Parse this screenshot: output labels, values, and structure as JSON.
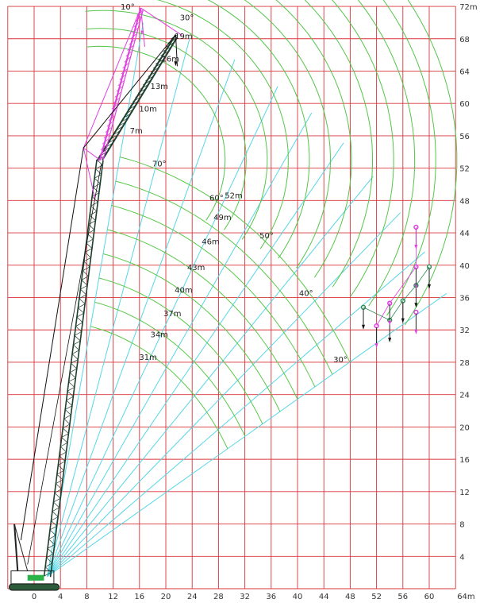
{
  "chart_data": {
    "type": "crane-working-range-diagram",
    "x_axis": {
      "unit_label": "64m",
      "ticks": [
        "0",
        "4",
        "8",
        "12",
        "16",
        "20",
        "24",
        "28",
        "32",
        "36",
        "40",
        "44",
        "48",
        "52",
        "56",
        "60"
      ],
      "range": [
        -4,
        64
      ]
    },
    "y_axis": {
      "unit_label": "72m",
      "ticks": [
        "4",
        "8",
        "12",
        "16",
        "20",
        "24",
        "28",
        "32",
        "36",
        "40",
        "44",
        "48",
        "52",
        "56",
        "60",
        "64",
        "68"
      ],
      "range": [
        0,
        72
      ]
    },
    "grid": true,
    "boom_length_labels": [
      {
        "text": "31m",
        "x": 17.3,
        "y": 28.3
      },
      {
        "text": "34m",
        "x": 19.0,
        "y": 31.1
      },
      {
        "text": "37m",
        "x": 21.0,
        "y": 33.7
      },
      {
        "text": "40m",
        "x": 22.7,
        "y": 36.6
      },
      {
        "text": "43m",
        "x": 24.6,
        "y": 39.4
      },
      {
        "text": "46m",
        "x": 26.8,
        "y": 42.6
      },
      {
        "text": "49m",
        "x": 28.6,
        "y": 45.6
      },
      {
        "text": "52m",
        "x": 30.3,
        "y": 48.3
      }
    ],
    "luffing_angle_labels": [
      {
        "text": "70°",
        "x": 19.0,
        "y": 52.2
      },
      {
        "text": "60°",
        "x": 27.7,
        "y": 48.0
      },
      {
        "text": "50°",
        "x": 35.3,
        "y": 43.3
      },
      {
        "text": "40°",
        "x": 41.3,
        "y": 36.2
      },
      {
        "text": "30°",
        "x": 46.5,
        "y": 28.0
      }
    ],
    "jib_length_labels": [
      {
        "text": "19m",
        "x": 22.7,
        "y": 68.0
      },
      {
        "text": "16m",
        "x": 20.7,
        "y": 65.2
      },
      {
        "text": "13m",
        "x": 19.0,
        "y": 61.8
      },
      {
        "text": "10m",
        "x": 17.3,
        "y": 59.0
      },
      {
        "text": "7m",
        "x": 15.5,
        "y": 56.3
      }
    ],
    "jib_angle_labels": [
      {
        "text": "10°",
        "x": 14.2,
        "y": 71.6
      },
      {
        "text": "30°",
        "x": 23.2,
        "y": 70.3
      }
    ],
    "main_boom": {
      "base": [
        2,
        1.5
      ],
      "tip": [
        10,
        53
      ]
    },
    "luffing_jib": {
      "tip": [
        21.5,
        68.5
      ]
    },
    "magenta_jib": {
      "tip": [
        16.2,
        71.8
      ],
      "strut": [
        7.5,
        54.5
      ]
    },
    "hook_blocks": [
      {
        "x": 50.0,
        "y": 34.8,
        "color": "#2e8b57"
      },
      {
        "x": 52.0,
        "y": 32.5,
        "color": "#e040e0"
      },
      {
        "x": 54.0,
        "y": 33.2,
        "color": "#2e8b57"
      },
      {
        "x": 54.0,
        "y": 35.3,
        "color": "#e040e0"
      },
      {
        "x": 56.0,
        "y": 35.6,
        "color": "#2e8b57"
      },
      {
        "x": 58.0,
        "y": 34.2,
        "color": "#e040e0"
      },
      {
        "x": 58.0,
        "y": 37.5,
        "color": "#2e8b57"
      },
      {
        "x": 58.0,
        "y": 39.8,
        "color": "#e040e0"
      },
      {
        "x": 58.0,
        "y": 44.7,
        "color": "#e040e0"
      },
      {
        "x": 60.0,
        "y": 39.8,
        "color": "#2e8b57"
      }
    ],
    "colors": {
      "grid": "#d9343a",
      "boom_arc": "#5ac84a",
      "jib_arc": "#55c54a",
      "radial": "#56d6e6",
      "boom": "#1f3f2f",
      "jib_magenta": "#e040e0",
      "rope": "#111111"
    }
  }
}
